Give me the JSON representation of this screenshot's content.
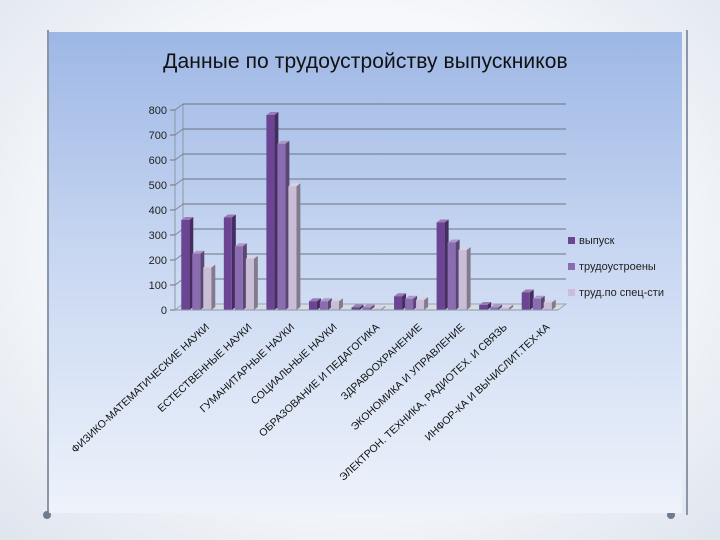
{
  "chart_data": {
    "type": "bar",
    "title": "Данные по трудоустройству выпускников",
    "xlabel": "",
    "ylabel": "",
    "ylim": [
      0,
      800
    ],
    "yticks": [
      0,
      100,
      200,
      300,
      400,
      500,
      600,
      700,
      800
    ],
    "grid": true,
    "legend_position": "right",
    "categories": [
      "ФИЗИКО-МАТЕМАТИЧЕСКИЕ НАУКИ",
      "ЕСТЕСТВЕННЫЕ НАУКИ",
      "ГУМАНИТАРНЫЕ НАУКИ",
      "СОЦИАЛЬНЫЕ НАУКИ",
      "ОБРАЗОВАНИЕ И ПЕДАГОГИКА",
      "ЗДРАВООХРАНЕНИЕ",
      "ЭКОНОМИКА И УПРАВЛЕНИЕ",
      "ЭЛЕКТРОН. ТЕХНИКА, РАДИОТЕХ. И СВЯЗЬ",
      "ИНФОР-КА И ВЫЧИСЛИТ.ТЕХ-КА"
    ],
    "series": [
      {
        "name": "выпуск",
        "color": "#6b4594",
        "values": [
          360,
          370,
          780,
          35,
          10,
          55,
          350,
          20,
          70
        ]
      },
      {
        "name": "трудоустроены",
        "color": "#8a6cb0",
        "values": [
          225,
          255,
          665,
          35,
          10,
          45,
          270,
          10,
          45
        ]
      },
      {
        "name": "труд.по спец-сти",
        "color": "#c9bdd8",
        "values": [
          170,
          205,
          495,
          35,
          5,
          40,
          240,
          10,
          30
        ]
      }
    ]
  }
}
